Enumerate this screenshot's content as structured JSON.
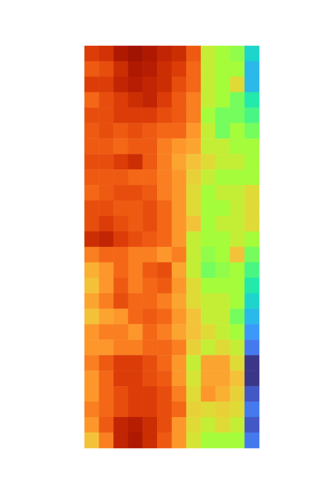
{
  "chart_data": {
    "type": "heatmap",
    "color": "turbo",
    "color_range": [
      0,
      1
    ],
    "tick_labels": false,
    "grid": false,
    "cells": [
      [
        0.85,
        0.87,
        0.93,
        0.95,
        0.93,
        0.9,
        0.88,
        0.8,
        0.55,
        0.5,
        0.48,
        0.3
      ],
      [
        0.8,
        0.82,
        0.88,
        0.93,
        0.92,
        0.88,
        0.85,
        0.78,
        0.55,
        0.5,
        0.5,
        0.25
      ],
      [
        0.85,
        0.85,
        0.9,
        0.92,
        0.9,
        0.88,
        0.82,
        0.78,
        0.55,
        0.5,
        0.6,
        0.25
      ],
      [
        0.78,
        0.82,
        0.85,
        0.88,
        0.9,
        0.85,
        0.8,
        0.75,
        0.55,
        0.5,
        0.45,
        0.35
      ],
      [
        0.82,
        0.82,
        0.85,
        0.85,
        0.85,
        0.82,
        0.8,
        0.75,
        0.5,
        0.45,
        0.45,
        0.4
      ],
      [
        0.8,
        0.82,
        0.8,
        0.82,
        0.8,
        0.78,
        0.78,
        0.72,
        0.55,
        0.45,
        0.5,
        0.45
      ],
      [
        0.8,
        0.8,
        0.78,
        0.8,
        0.8,
        0.75,
        0.72,
        0.7,
        0.55,
        0.55,
        0.5,
        0.5
      ],
      [
        0.82,
        0.82,
        0.85,
        0.88,
        0.8,
        0.75,
        0.7,
        0.65,
        0.6,
        0.55,
        0.55,
        0.5
      ],
      [
        0.8,
        0.8,
        0.8,
        0.78,
        0.78,
        0.75,
        0.72,
        0.62,
        0.55,
        0.5,
        0.5,
        0.5
      ],
      [
        0.78,
        0.8,
        0.82,
        0.82,
        0.8,
        0.75,
        0.72,
        0.6,
        0.5,
        0.55,
        0.55,
        0.6
      ],
      [
        0.82,
        0.82,
        0.8,
        0.8,
        0.82,
        0.78,
        0.72,
        0.6,
        0.5,
        0.5,
        0.55,
        0.6
      ],
      [
        0.82,
        0.85,
        0.82,
        0.8,
        0.82,
        0.78,
        0.72,
        0.65,
        0.5,
        0.55,
        0.55,
        0.6
      ],
      [
        0.88,
        0.9,
        0.85,
        0.82,
        0.8,
        0.78,
        0.72,
        0.55,
        0.5,
        0.5,
        0.55,
        0.5
      ],
      [
        0.75,
        0.78,
        0.78,
        0.75,
        0.75,
        0.72,
        0.75,
        0.55,
        0.48,
        0.5,
        0.65,
        0.45
      ],
      [
        0.68,
        0.72,
        0.78,
        0.75,
        0.8,
        0.82,
        0.7,
        0.55,
        0.45,
        0.48,
        0.5,
        0.4
      ],
      [
        0.65,
        0.72,
        0.8,
        0.75,
        0.78,
        0.8,
        0.72,
        0.6,
        0.5,
        0.5,
        0.5,
        0.35
      ],
      [
        0.7,
        0.75,
        0.82,
        0.78,
        0.78,
        0.75,
        0.7,
        0.6,
        0.55,
        0.55,
        0.5,
        0.3
      ],
      [
        0.65,
        0.7,
        0.72,
        0.78,
        0.8,
        0.78,
        0.72,
        0.65,
        0.55,
        0.55,
        0.45,
        0.25
      ],
      [
        0.72,
        0.75,
        0.75,
        0.72,
        0.78,
        0.75,
        0.7,
        0.65,
        0.6,
        0.55,
        0.5,
        0.2
      ],
      [
        0.72,
        0.72,
        0.75,
        0.75,
        0.78,
        0.78,
        0.75,
        0.62,
        0.55,
        0.6,
        0.55,
        0.15
      ],
      [
        0.75,
        0.8,
        0.85,
        0.85,
        0.82,
        0.78,
        0.72,
        0.55,
        0.7,
        0.7,
        0.6,
        0.05
      ],
      [
        0.72,
        0.78,
        0.85,
        0.85,
        0.82,
        0.8,
        0.72,
        0.58,
        0.7,
        0.7,
        0.65,
        0.05
      ],
      [
        0.72,
        0.78,
        0.82,
        0.85,
        0.85,
        0.82,
        0.75,
        0.6,
        0.72,
        0.68,
        0.62,
        0.1
      ],
      [
        0.75,
        0.78,
        0.82,
        0.85,
        0.85,
        0.82,
        0.78,
        0.62,
        0.6,
        0.62,
        0.6,
        0.15
      ],
      [
        0.72,
        0.8,
        0.9,
        0.92,
        0.88,
        0.82,
        0.72,
        0.6,
        0.55,
        0.6,
        0.55,
        0.1
      ],
      [
        0.65,
        0.75,
        0.9,
        0.93,
        0.88,
        0.8,
        0.72,
        0.58,
        0.5,
        0.5,
        0.5,
        0.15
      ]
    ]
  }
}
